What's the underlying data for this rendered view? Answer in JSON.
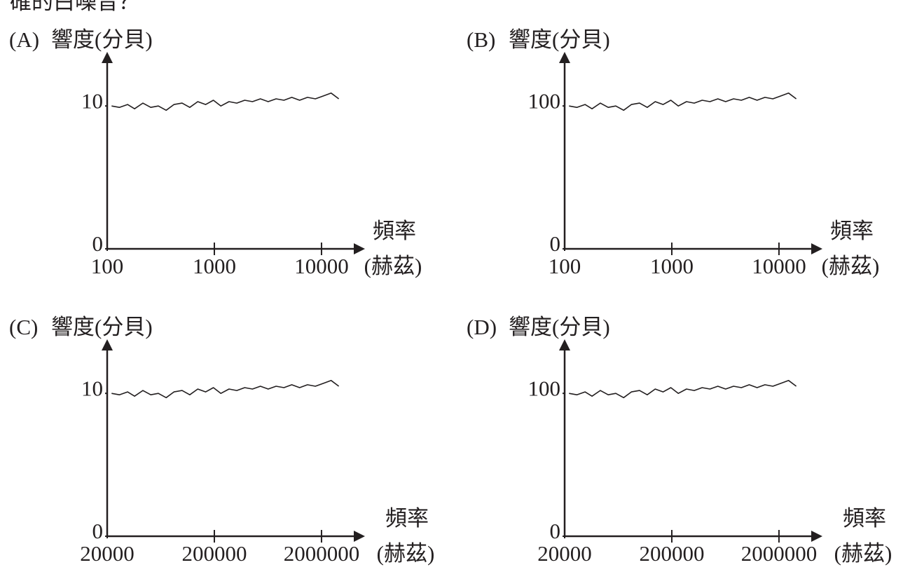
{
  "header": {
    "text": "確的白噪音？"
  },
  "chart_data": [
    {
      "type": "line",
      "label": "(A)",
      "ylabel": "響度(分貝)",
      "xlabel": [
        "頻率",
        "(赫茲)"
      ],
      "xscale": "log",
      "color": "#231f20",
      "xlim": [
        100,
        20000
      ],
      "xticks": [
        100,
        1000,
        10000
      ],
      "ylim": [
        0,
        13
      ],
      "yticks": [
        0,
        10
      ],
      "x": [
        110,
        130,
        155,
        180,
        215,
        255,
        300,
        355,
        420,
        500,
        590,
        700,
        830,
        980,
        1150,
        1370,
        1620,
        1920,
        2270,
        2690,
        3180,
        3770,
        4460,
        5280,
        6250,
        7400,
        8760,
        10400,
        12300,
        14500
      ],
      "values": [
        10.0,
        9.9,
        10.1,
        9.8,
        10.2,
        9.9,
        10.0,
        9.7,
        10.1,
        10.2,
        9.9,
        10.3,
        10.1,
        10.4,
        10.0,
        10.3,
        10.2,
        10.4,
        10.3,
        10.5,
        10.3,
        10.5,
        10.4,
        10.6,
        10.4,
        10.6,
        10.5,
        10.7,
        10.9,
        10.5
      ]
    },
    {
      "type": "line",
      "label": "(B)",
      "ylabel": "響度(分貝)",
      "xlabel": [
        "頻率",
        "(赫茲)"
      ],
      "xscale": "log",
      "color": "#231f20",
      "xlim": [
        100,
        20000
      ],
      "xticks": [
        100,
        1000,
        10000
      ],
      "ylim": [
        0,
        130
      ],
      "yticks": [
        0,
        100
      ],
      "x": [
        110,
        130,
        155,
        180,
        215,
        255,
        300,
        355,
        420,
        500,
        590,
        700,
        830,
        980,
        1150,
        1370,
        1620,
        1920,
        2270,
        2690,
        3180,
        3770,
        4460,
        5280,
        6250,
        7400,
        8760,
        10400,
        12300,
        14500
      ],
      "values": [
        100,
        99,
        101,
        98,
        102,
        99,
        100,
        97,
        101,
        102,
        99,
        103,
        101,
        104,
        100,
        103,
        102,
        104,
        103,
        105,
        103,
        105,
        104,
        106,
        104,
        106,
        105,
        107,
        109,
        105
      ]
    },
    {
      "type": "line",
      "label": "(C)",
      "ylabel": "響度(分貝)",
      "xlabel": [
        "頻率",
        "(赫茲)"
      ],
      "xscale": "log",
      "color": "#231f20",
      "xlim": [
        20000,
        4000000
      ],
      "xticks": [
        20000,
        200000,
        2000000
      ],
      "ylim": [
        0,
        13
      ],
      "yticks": [
        0,
        10
      ],
      "x": [
        22000,
        26000,
        31000,
        36000,
        43000,
        51000,
        60000,
        71000,
        84000,
        100000,
        118000,
        140000,
        166000,
        196000,
        230000,
        274000,
        324000,
        384000,
        454000,
        538000,
        636000,
        754000,
        892000,
        1056000,
        1250000,
        1480000,
        1752000,
        2080000,
        2460000,
        2900000
      ],
      "values": [
        10.0,
        9.9,
        10.1,
        9.8,
        10.2,
        9.9,
        10.0,
        9.7,
        10.1,
        10.2,
        9.9,
        10.3,
        10.1,
        10.4,
        10.0,
        10.3,
        10.2,
        10.4,
        10.3,
        10.5,
        10.3,
        10.5,
        10.4,
        10.6,
        10.4,
        10.6,
        10.5,
        10.7,
        10.9,
        10.5
      ]
    },
    {
      "type": "line",
      "label": "(D)",
      "ylabel": "響度(分貝)",
      "xlabel": [
        "頻率",
        "(赫茲)"
      ],
      "xscale": "log",
      "color": "#231f20",
      "xlim": [
        20000,
        4000000
      ],
      "xticks": [
        20000,
        200000,
        2000000
      ],
      "ylim": [
        0,
        130
      ],
      "yticks": [
        0,
        100
      ],
      "x": [
        22000,
        26000,
        31000,
        36000,
        43000,
        51000,
        60000,
        71000,
        84000,
        100000,
        118000,
        140000,
        166000,
        196000,
        230000,
        274000,
        324000,
        384000,
        454000,
        538000,
        636000,
        754000,
        892000,
        1056000,
        1250000,
        1480000,
        1752000,
        2080000,
        2460000,
        2900000
      ],
      "values": [
        100,
        99,
        101,
        98,
        102,
        99,
        100,
        97,
        101,
        102,
        99,
        103,
        101,
        104,
        100,
        103,
        102,
        104,
        103,
        105,
        103,
        105,
        104,
        106,
        104,
        106,
        105,
        107,
        109,
        105
      ]
    }
  ]
}
